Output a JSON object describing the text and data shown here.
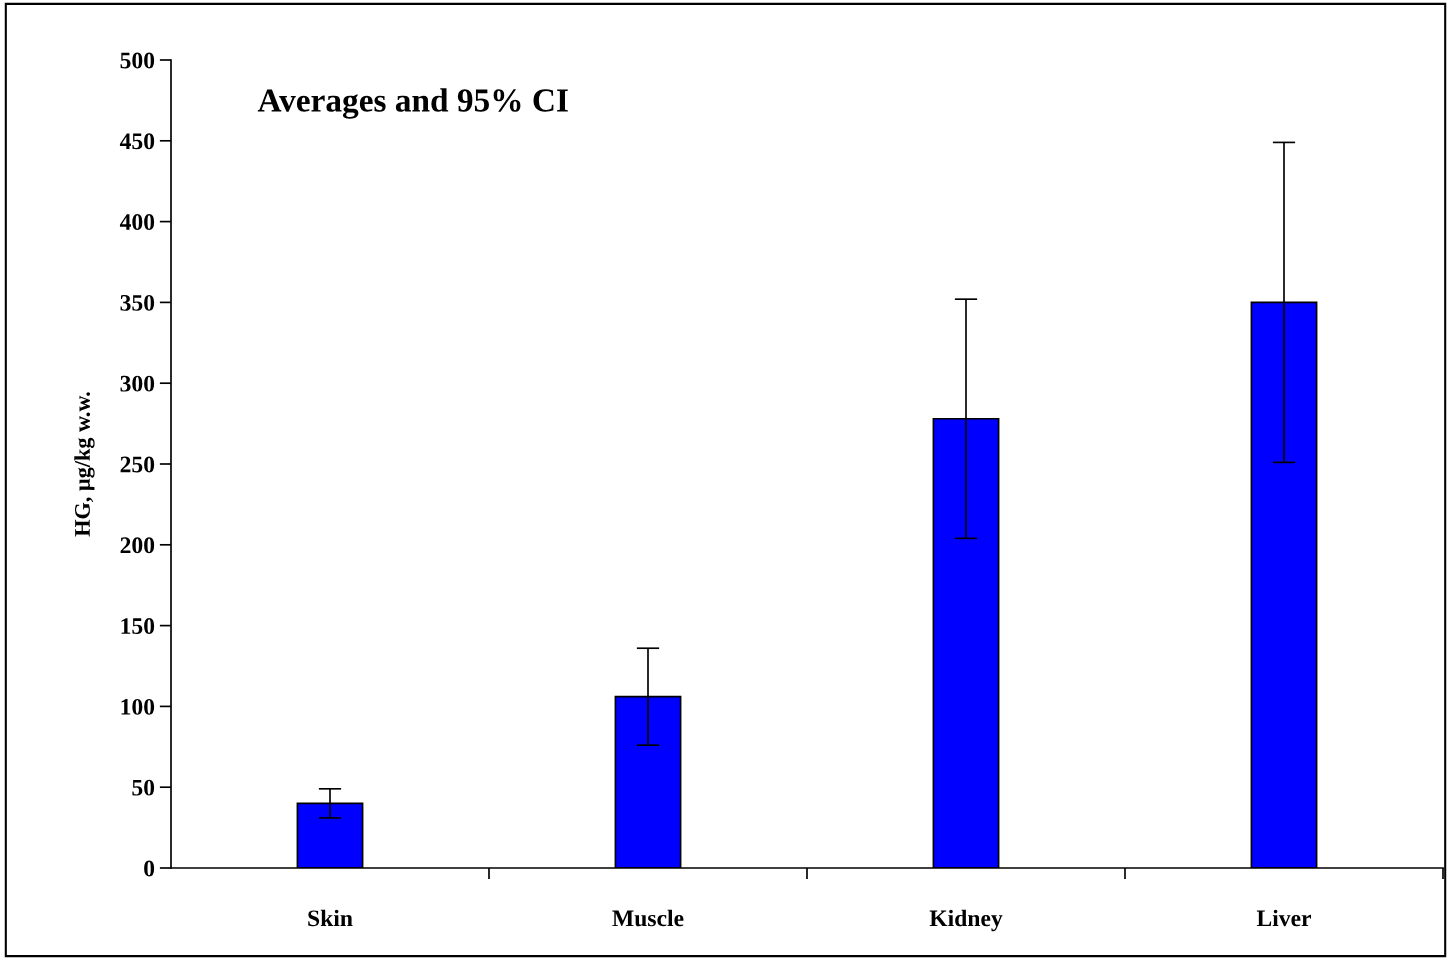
{
  "chart_data": {
    "type": "bar",
    "title": "Averages and 95% CI",
    "ylabel": "HG, µg/kg w.w.",
    "categories": [
      "Skin",
      "Muscle",
      "Kidney",
      "Liver"
    ],
    "values": [
      40,
      106,
      278,
      350
    ],
    "errors": [
      9,
      30,
      74,
      99
    ],
    "color": "#0000ff",
    "ylim": [
      0,
      500
    ],
    "yticks": [
      0,
      50,
      100,
      150,
      200,
      250,
      300,
      350,
      400,
      450,
      500
    ],
    "grid": false,
    "legend": false
  }
}
